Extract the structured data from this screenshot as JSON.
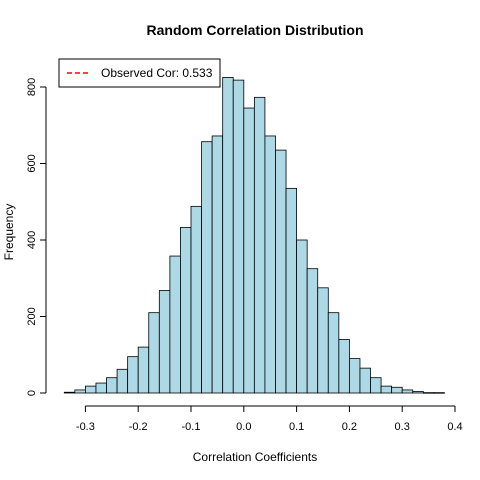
{
  "chart_data": {
    "type": "histogram",
    "title": "Random Correlation Distribution",
    "xlabel": "Correlation Coefficients",
    "ylabel": "Frequency",
    "xlim": [
      -0.35,
      0.4
    ],
    "ylim": [
      0,
      800
    ],
    "bin_width": 0.02,
    "x_ticks": [
      -0.3,
      -0.2,
      -0.1,
      0.0,
      0.1,
      0.2,
      0.3,
      0.4
    ],
    "x_tick_labels": [
      "-0.3",
      "-0.2",
      "-0.1",
      "0.0",
      "0.1",
      "0.2",
      "0.3",
      "0.4"
    ],
    "y_ticks": [
      0,
      200,
      400,
      600,
      800
    ],
    "y_tick_labels": [
      "0",
      "200",
      "400",
      "600",
      "800"
    ],
    "bar_color": "#ADD8E6",
    "bins": [
      {
        "start": -0.34,
        "end": -0.32,
        "count": 2
      },
      {
        "start": -0.32,
        "end": -0.3,
        "count": 8
      },
      {
        "start": -0.3,
        "end": -0.28,
        "count": 18
      },
      {
        "start": -0.28,
        "end": -0.26,
        "count": 26
      },
      {
        "start": -0.26,
        "end": -0.24,
        "count": 40
      },
      {
        "start": -0.24,
        "end": -0.22,
        "count": 62
      },
      {
        "start": -0.22,
        "end": -0.2,
        "count": 95
      },
      {
        "start": -0.2,
        "end": -0.18,
        "count": 120
      },
      {
        "start": -0.18,
        "end": -0.16,
        "count": 210
      },
      {
        "start": -0.16,
        "end": -0.14,
        "count": 268
      },
      {
        "start": -0.14,
        "end": -0.12,
        "count": 358
      },
      {
        "start": -0.12,
        "end": -0.1,
        "count": 433
      },
      {
        "start": -0.1,
        "end": -0.08,
        "count": 488
      },
      {
        "start": -0.08,
        "end": -0.06,
        "count": 657
      },
      {
        "start": -0.06,
        "end": -0.04,
        "count": 672
      },
      {
        "start": -0.04,
        "end": -0.02,
        "count": 825
      },
      {
        "start": -0.02,
        "end": 0.0,
        "count": 818
      },
      {
        "start": 0.0,
        "end": 0.02,
        "count": 745
      },
      {
        "start": 0.02,
        "end": 0.04,
        "count": 773
      },
      {
        "start": 0.04,
        "end": 0.06,
        "count": 672
      },
      {
        "start": 0.06,
        "end": 0.08,
        "count": 635
      },
      {
        "start": 0.08,
        "end": 0.1,
        "count": 535
      },
      {
        "start": 0.1,
        "end": 0.12,
        "count": 400
      },
      {
        "start": 0.12,
        "end": 0.14,
        "count": 325
      },
      {
        "start": 0.14,
        "end": 0.16,
        "count": 275
      },
      {
        "start": 0.16,
        "end": 0.18,
        "count": 210
      },
      {
        "start": 0.18,
        "end": 0.2,
        "count": 140
      },
      {
        "start": 0.2,
        "end": 0.22,
        "count": 90
      },
      {
        "start": 0.22,
        "end": 0.24,
        "count": 65
      },
      {
        "start": 0.24,
        "end": 0.26,
        "count": 40
      },
      {
        "start": 0.26,
        "end": 0.28,
        "count": 18
      },
      {
        "start": 0.28,
        "end": 0.3,
        "count": 15
      },
      {
        "start": 0.3,
        "end": 0.32,
        "count": 8
      },
      {
        "start": 0.32,
        "end": 0.34,
        "count": 4
      },
      {
        "start": 0.34,
        "end": 0.36,
        "count": 1
      },
      {
        "start": 0.36,
        "end": 0.38,
        "count": 1
      }
    ],
    "observed_line": {
      "value": 0.533,
      "color": "#FF0000",
      "style": "dashed"
    },
    "legend": {
      "position": "top-left",
      "entries": [
        {
          "label": "Observed Cor: 0.533",
          "color": "#FF0000",
          "style": "dashed"
        }
      ]
    }
  }
}
